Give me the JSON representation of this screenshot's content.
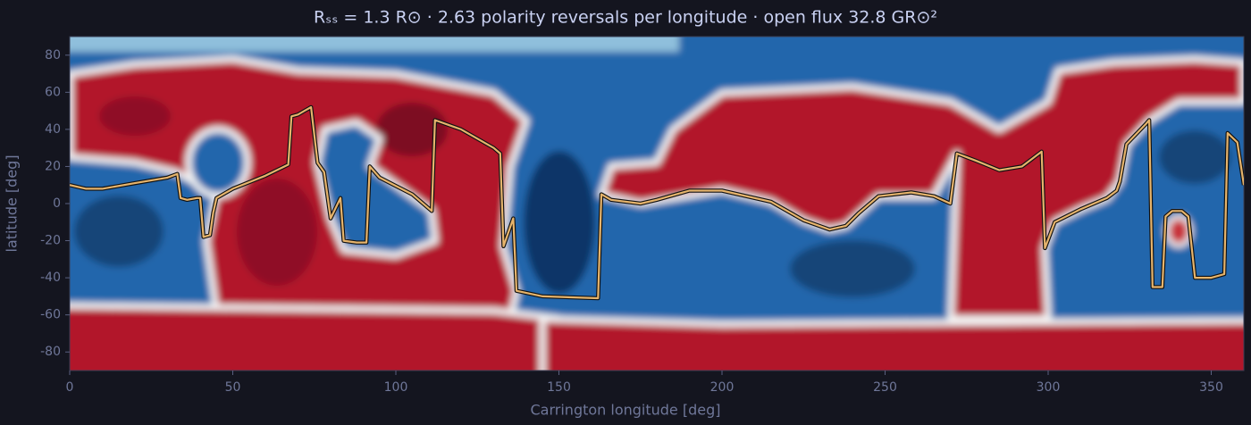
{
  "chart_data": {
    "type": "line",
    "title": "Rₛₛ = 1.3 R⊙   ·   2.63 polarity reversals per longitude   ·   open flux 32.8 GR⊙²",
    "xlabel": "Carrington longitude [deg]",
    "ylabel": "latitude [deg]",
    "x": [
      0,
      5,
      10,
      20,
      30,
      33,
      34,
      36,
      39,
      40,
      41,
      43,
      44,
      45,
      50,
      60,
      67,
      68,
      70,
      72,
      74,
      76,
      78,
      80,
      83,
      84,
      88,
      91,
      92,
      95,
      105,
      111,
      112,
      120,
      130,
      132,
      133,
      136,
      137,
      145,
      162,
      163,
      166,
      175,
      180,
      190,
      200,
      215,
      225,
      233,
      238,
      242,
      248,
      258,
      265,
      270,
      272,
      278,
      285,
      292,
      298,
      299,
      302,
      310,
      318,
      321,
      322,
      324,
      330,
      331,
      332,
      335,
      336,
      338,
      341,
      343,
      345,
      350,
      354,
      355,
      358,
      360
    ],
    "values": [
      10,
      8,
      8,
      11,
      14,
      16,
      3,
      2,
      3,
      3,
      -18,
      -17,
      -5,
      3,
      8,
      15,
      21,
      47,
      48,
      50,
      52,
      22,
      17,
      -8,
      3,
      -20,
      -21,
      -21,
      20,
      14,
      5,
      -4,
      45,
      40,
      30,
      27,
      -23,
      -8,
      -47,
      -50,
      -51,
      5,
      2,
      0,
      2,
      7,
      7,
      1,
      -9,
      -14,
      -12,
      -5,
      4,
      6,
      4,
      0,
      27,
      23,
      18,
      20,
      28,
      -24,
      -10,
      -3,
      3,
      7,
      12,
      32,
      43,
      45,
      -45,
      -45,
      -7,
      -4,
      -4,
      -7,
      -40,
      -40,
      -38,
      38,
      33,
      10
    ],
    "color": "#e6b46c",
    "xlim": [
      0,
      360
    ],
    "ylim": [
      -90,
      90
    ],
    "xticks": [
      0,
      50,
      100,
      150,
      200,
      250,
      300,
      350
    ],
    "yticks": [
      -80,
      -60,
      -40,
      -20,
      0,
      20,
      40,
      60,
      80
    ]
  }
}
